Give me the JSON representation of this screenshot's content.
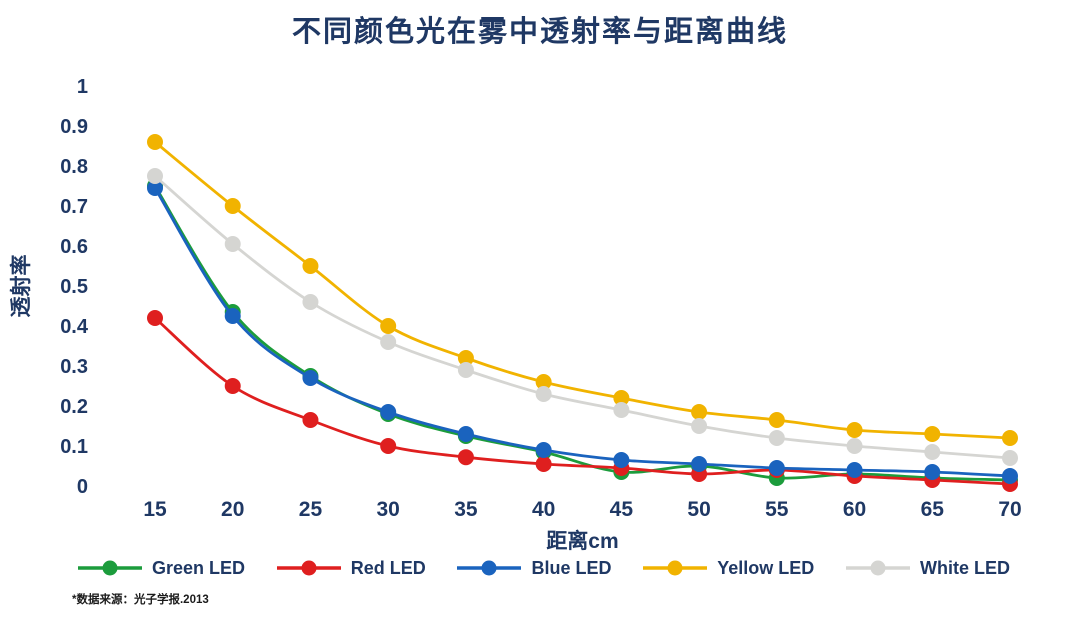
{
  "title": "不同颜色光在雾中透射率与距离曲线",
  "footnote": "*数据来源：光子学报.2013",
  "colors": {
    "text": "#1F3864",
    "background": "#FFFFFF"
  },
  "chart_data": {
    "type": "line",
    "title": "不同颜色光在雾中透射率与距离曲线",
    "x": [
      15,
      20,
      25,
      30,
      35,
      40,
      45,
      50,
      55,
      60,
      65,
      70
    ],
    "xlabel": "距离cm",
    "ylabel": "透射率",
    "ylim": [
      0,
      1
    ],
    "ytick_step": 0.1,
    "grid": false,
    "legend_position": "bottom",
    "series": [
      {
        "name": "Green LED",
        "color": "#1C9C3C",
        "values": [
          0.75,
          0.435,
          0.275,
          0.18,
          0.125,
          0.085,
          0.035,
          0.05,
          0.02,
          0.03,
          0.02,
          0.015
        ]
      },
      {
        "name": "Red LED",
        "color": "#DF1F1F",
        "values": [
          0.42,
          0.25,
          0.165,
          0.1,
          0.072,
          0.055,
          0.045,
          0.03,
          0.04,
          0.025,
          0.015,
          0.005
        ]
      },
      {
        "name": "Blue LED",
        "color": "#1A63BE",
        "values": [
          0.745,
          0.425,
          0.27,
          0.185,
          0.13,
          0.09,
          0.065,
          0.055,
          0.045,
          0.04,
          0.035,
          0.025
        ]
      },
      {
        "name": "Yellow LED",
        "color": "#F1B300",
        "values": [
          0.86,
          0.7,
          0.55,
          0.4,
          0.32,
          0.26,
          0.22,
          0.185,
          0.165,
          0.14,
          0.13,
          0.12
        ]
      },
      {
        "name": "White LED",
        "color": "#D5D5D2",
        "values": [
          0.775,
          0.605,
          0.46,
          0.36,
          0.29,
          0.23,
          0.19,
          0.15,
          0.12,
          0.1,
          0.085,
          0.07
        ]
      }
    ]
  }
}
